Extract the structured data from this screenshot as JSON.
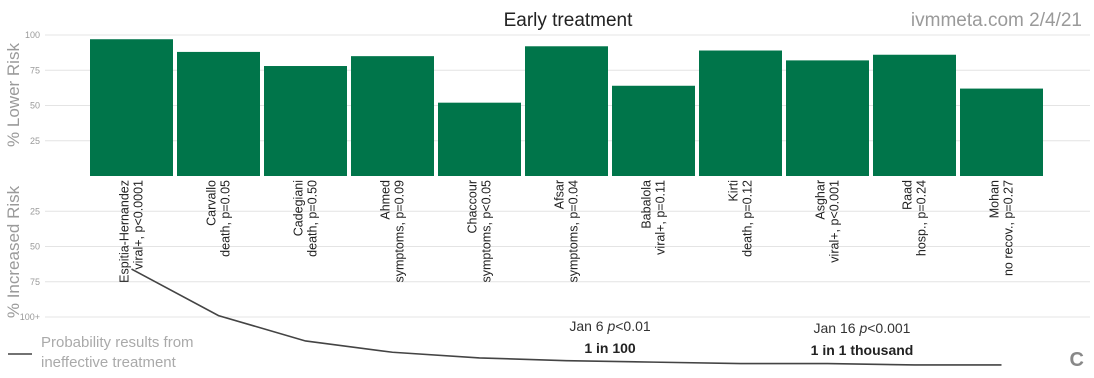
{
  "title": "Early treatment",
  "source": "ivmmeta.com 2/4/21",
  "corner_mark": "C",
  "colors": {
    "bar": "#00754a",
    "grid": "#e4e4e4",
    "axis_label": "#9a9a9a",
    "tick": "#9a9a9a",
    "text": "#222222",
    "line": "#444444",
    "legend_text": "#aaaaaa"
  },
  "chart_data": {
    "type": "bar",
    "upper_axis_label": "% Lower Risk",
    "lower_axis_label": "% Increased Risk",
    "upper_ticks": [
      "100",
      "75",
      "50",
      "25"
    ],
    "lower_ticks": [
      "25",
      "50",
      "75",
      "100+"
    ],
    "upper_range": [
      0,
      100
    ],
    "lower_range": [
      0,
      100
    ],
    "grid": true,
    "studies": [
      {
        "name": "Espitia-Hernandez",
        "result": "viral+, p<0.0001",
        "value": 97
      },
      {
        "name": "Carvallo",
        "result": "death, p=0.05",
        "value": 88
      },
      {
        "name": "Cadegiani",
        "result": "death, p=0.50",
        "value": 78
      },
      {
        "name": "Ahmed",
        "result": "symptoms, p=0.09",
        "value": 85
      },
      {
        "name": "Chaccour",
        "result": "symptoms, p<0.05",
        "value": 52
      },
      {
        "name": "Afsar",
        "result": "symptoms, p=0.04",
        "value": 92
      },
      {
        "name": "Babalola",
        "result": "viral+, p=0.11",
        "value": 64
      },
      {
        "name": "Kirti",
        "result": "death, p=0.12",
        "value": 89
      },
      {
        "name": "Asghar",
        "result": "viral+, p<0.001",
        "value": 82
      },
      {
        "name": "Raad",
        "result": "hosp., p=0.24",
        "value": 86
      },
      {
        "name": "Mohan",
        "result": "no recov., p=0.27",
        "value": 62
      }
    ],
    "probability_line": {
      "legend": [
        "Probability results from",
        "ineffective treatment"
      ],
      "values": [
        66,
        99,
        117,
        125,
        129,
        131,
        132,
        133,
        133,
        134,
        134
      ]
    },
    "annotations": [
      {
        "date": "Jan 6",
        "p_label": "p",
        "p_value": "<0.01",
        "odds": "1 in 100"
      },
      {
        "date": "Jan 16",
        "p_label": "p",
        "p_value": "<0.001",
        "odds": "1 in 1 thousand"
      }
    ]
  }
}
